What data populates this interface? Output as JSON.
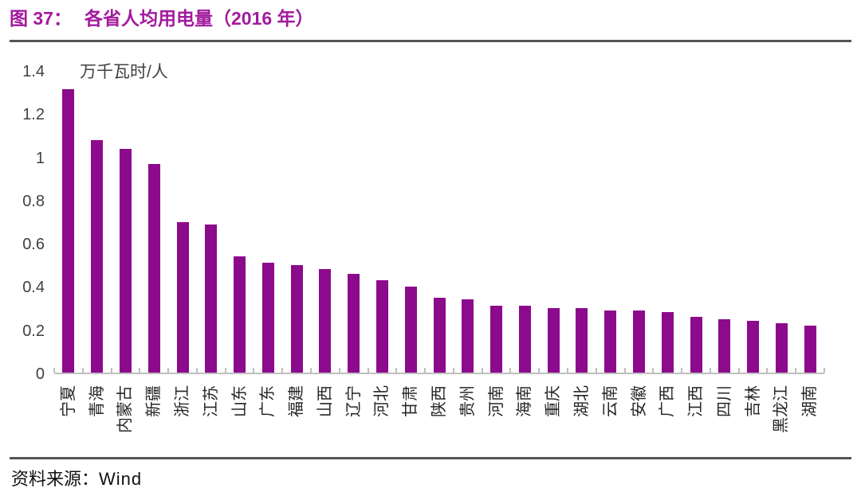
{
  "figure": {
    "label": "图 37：",
    "title": "各省人均用电量（2016 年）"
  },
  "chart_data": {
    "type": "bar",
    "title": "各省人均用电量（2016 年）",
    "unit_label": "万千瓦时/人",
    "xlabel": "",
    "ylabel": "万千瓦时/人",
    "categories": [
      "宁夏",
      "青海",
      "内蒙古",
      "新疆",
      "浙江",
      "江苏",
      "山东",
      "广东",
      "福建",
      "山西",
      "辽宁",
      "河北",
      "甘肃",
      "陕西",
      "贵州",
      "河南",
      "海南",
      "重庆",
      "湖北",
      "云南",
      "安徽",
      "广西",
      "江西",
      "四川",
      "吉林",
      "黑龙江",
      "湖南"
    ],
    "values": [
      1.32,
      1.08,
      1.04,
      0.97,
      0.7,
      0.69,
      0.54,
      0.51,
      0.5,
      0.48,
      0.46,
      0.43,
      0.4,
      0.35,
      0.34,
      0.31,
      0.31,
      0.3,
      0.3,
      0.29,
      0.29,
      0.28,
      0.26,
      0.25,
      0.24,
      0.23,
      0.22
    ],
    "ylim": [
      0,
      1.4
    ],
    "yticks": [
      "0",
      "0.2",
      "0.4",
      "0.6",
      "0.8",
      "1",
      "1.2",
      "1.4"
    ],
    "grid": false,
    "legend": false,
    "label_rotation_deg": -90
  },
  "footer": {
    "source_label": "资料来源：",
    "source_value": "Wind"
  },
  "colors": {
    "bar": "#8C0A8C",
    "title": "#A21A9E",
    "rule": "#565656",
    "axis": "#BFBFBF",
    "tick_text": "#404040"
  }
}
